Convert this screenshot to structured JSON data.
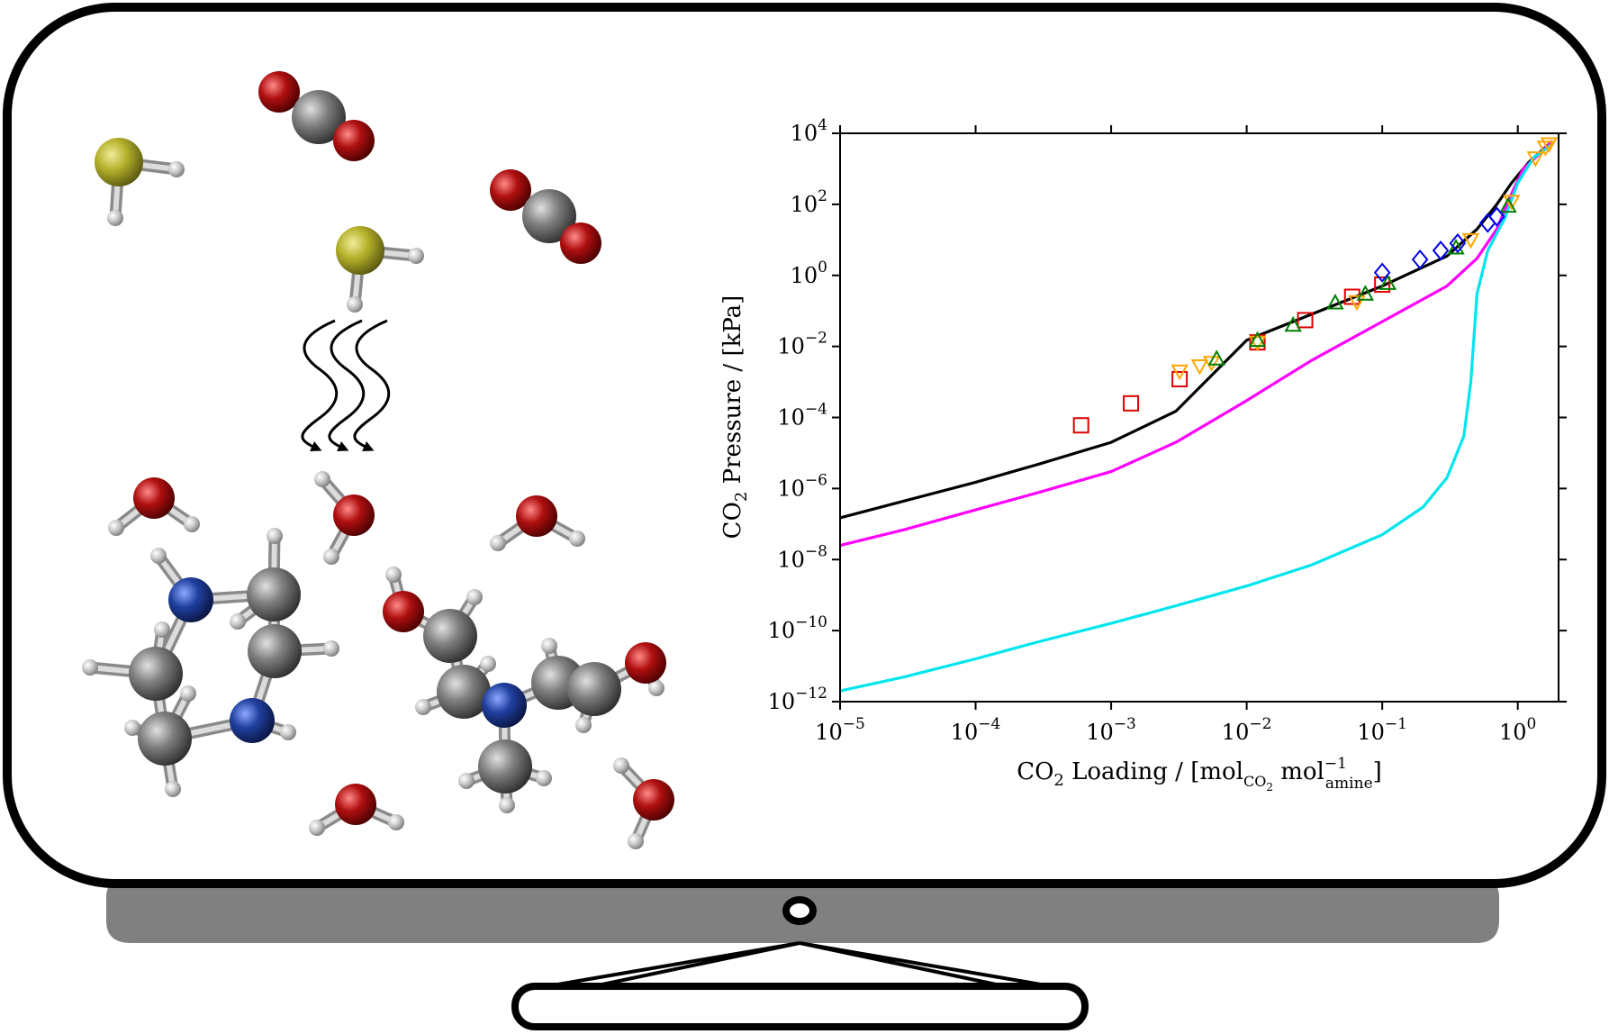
{
  "colors": {
    "frame": "#000000",
    "stand": "#808080",
    "sulfur": "#b5b12b",
    "oxygen": "#b01010",
    "carbon": "#808080",
    "nitrogen": "#2040a0",
    "hydrogen": "#c8c8c8"
  },
  "chart_data": {
    "type": "line",
    "xlabel_parts": [
      "CO",
      "2",
      " Loading / [mol",
      "CO",
      "2",
      " mol",
      "−1",
      "amine",
      "]"
    ],
    "ylabel_parts": [
      "CO",
      "2",
      " Pressure / [kPa]"
    ],
    "x_scale": "log",
    "y_scale": "log",
    "xlim": [
      1e-05,
      2
    ],
    "ylim": [
      1e-12,
      10000
    ],
    "x_ticks": [
      {
        "base": "10",
        "exp": "−5",
        "value": 1e-05
      },
      {
        "base": "10",
        "exp": "−4",
        "value": 0.0001
      },
      {
        "base": "10",
        "exp": "−3",
        "value": 0.001
      },
      {
        "base": "10",
        "exp": "−2",
        "value": 0.01
      },
      {
        "base": "10",
        "exp": "−1",
        "value": 0.1
      },
      {
        "base": "10",
        "exp": "0",
        "value": 1
      }
    ],
    "y_ticks": [
      {
        "base": "10",
        "exp": "−12",
        "value": 1e-12
      },
      {
        "base": "10",
        "exp": "−10",
        "value": 1e-10
      },
      {
        "base": "10",
        "exp": "−8",
        "value": 1e-08
      },
      {
        "base": "10",
        "exp": "−6",
        "value": 1e-06
      },
      {
        "base": "10",
        "exp": "−4",
        "value": 0.0001
      },
      {
        "base": "10",
        "exp": "−2",
        "value": 0.01
      },
      {
        "base": "10",
        "exp": "0",
        "value": 1
      },
      {
        "base": "10",
        "exp": "2",
        "value": 100
      },
      {
        "base": "10",
        "exp": "4",
        "value": 10000
      }
    ],
    "grid": false,
    "lines": [
      {
        "color": "#000000",
        "x": [
          1e-05,
          3e-05,
          0.0001,
          0.0003,
          0.001,
          0.003,
          0.01,
          0.03,
          0.1,
          0.3,
          0.5,
          0.7,
          0.9,
          1.2,
          1.8
        ],
        "y": [
          1.5e-07,
          4.5e-07,
          1.5e-06,
          5e-06,
          2e-05,
          0.00015,
          0.015,
          0.08,
          0.5,
          3.5,
          20,
          100,
          400,
          1500,
          6000
        ]
      },
      {
        "color": "#ff00ff",
        "x": [
          1e-05,
          3e-05,
          0.0001,
          0.0003,
          0.001,
          0.003,
          0.01,
          0.03,
          0.1,
          0.3,
          0.5,
          0.7,
          0.9,
          1.1,
          1.5,
          1.8
        ],
        "y": [
          2.5e-08,
          7e-08,
          2.5e-07,
          8e-07,
          3e-06,
          2e-05,
          0.0003,
          0.004,
          0.05,
          0.5,
          3,
          20,
          200,
          1000,
          3000,
          6000
        ]
      },
      {
        "color": "#00e5ee",
        "x": [
          1e-05,
          3e-05,
          0.0001,
          0.0003,
          0.001,
          0.003,
          0.01,
          0.03,
          0.1,
          0.2,
          0.3,
          0.4,
          0.45,
          0.5,
          0.6,
          0.8,
          1.0,
          1.3,
          1.8
        ],
        "y": [
          2e-12,
          5e-12,
          1.6e-11,
          5e-11,
          1.6e-10,
          5e-10,
          1.8e-09,
          7e-09,
          5e-08,
          3e-07,
          2e-06,
          3e-05,
          0.001,
          0.3,
          5,
          40,
          400,
          2000,
          5000
        ]
      }
    ],
    "markers": [
      {
        "shape": "square",
        "color": "#e00000",
        "x": [
          0.0006,
          0.0014,
          0.0032,
          0.012,
          0.027,
          0.06,
          0.1
        ],
        "y": [
          6e-05,
          0.00025,
          0.0012,
          0.013,
          0.055,
          0.25,
          0.55
        ]
      },
      {
        "shape": "triangle-down",
        "color": "#ffa500",
        "x": [
          0.0032,
          0.0045,
          0.0055,
          0.012,
          0.065,
          0.45,
          0.9,
          1.35,
          1.6,
          1.7
        ],
        "y": [
          0.002,
          0.0028,
          0.0035,
          0.013,
          0.18,
          10,
          120,
          2000,
          4000,
          5000
        ]
      },
      {
        "shape": "triangle-up",
        "color": "#008000",
        "x": [
          0.006,
          0.012,
          0.022,
          0.045,
          0.075,
          0.11,
          0.35,
          0.85
        ],
        "y": [
          0.0045,
          0.015,
          0.04,
          0.17,
          0.3,
          0.6,
          6,
          90
        ]
      },
      {
        "shape": "diamond",
        "color": "#0000ee",
        "x": [
          0.1,
          0.19,
          0.27,
          0.36,
          0.6,
          0.7
        ],
        "y": [
          1.2,
          2.8,
          5,
          8,
          30,
          45
        ]
      }
    ]
  }
}
